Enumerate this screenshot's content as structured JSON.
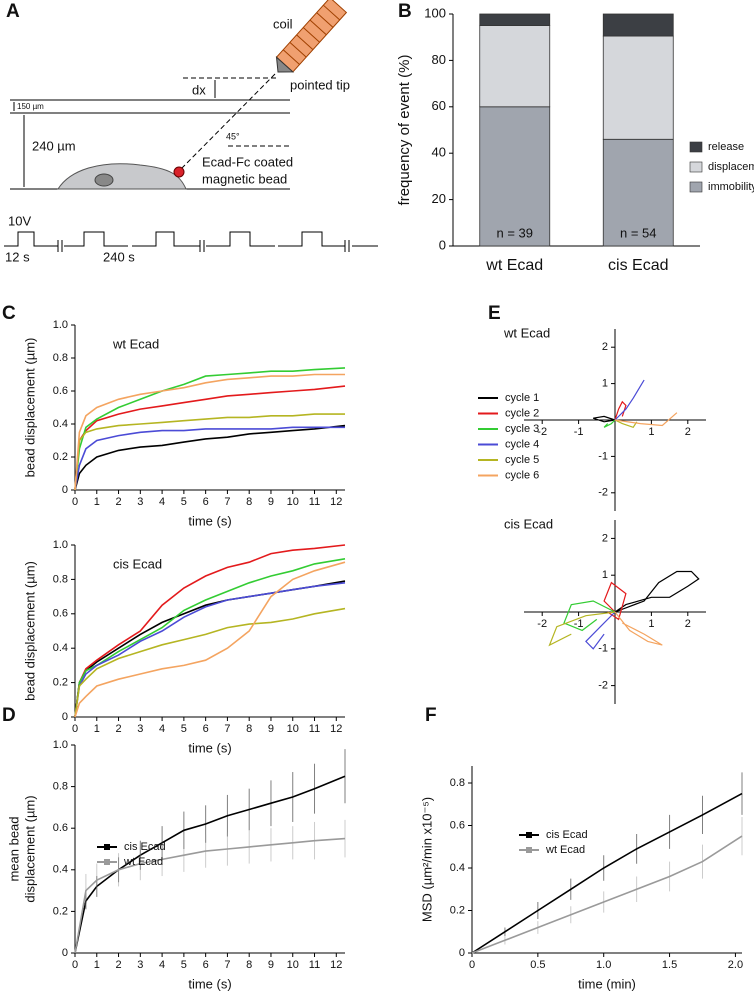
{
  "panel_labels": [
    "A",
    "B",
    "C",
    "D",
    "E",
    "F"
  ],
  "diagram": {
    "coil": "coil",
    "pointed_tip": "pointed tip",
    "dx": "dx",
    "thin_gap": "150 µm",
    "height": "240 µm",
    "angle": "45°",
    "bead_label": [
      "Ecad-Fc coated",
      "magnetic bead"
    ],
    "voltage": "10V",
    "pulse": "12 s",
    "interval": "240 s"
  },
  "chart_data": [
    {
      "type": "bar",
      "stacked": true,
      "ylabel": "frequency of event (%)",
      "categories": [
        "wt Ecad",
        "cis Ecad"
      ],
      "series": [
        {
          "name": "immobility",
          "color": "#a0a5ae",
          "values": [
            60,
            46
          ]
        },
        {
          "name": "displacement",
          "color": "#d5d7db",
          "values": [
            35,
            44.5
          ]
        },
        {
          "name": "release",
          "color": "#3c3f44",
          "values": [
            5,
            9.5
          ]
        }
      ],
      "annotations": [
        "n = 39",
        "n = 54"
      ],
      "ylim": [
        0,
        100
      ],
      "yticks": [
        0,
        20,
        40,
        60,
        80,
        100
      ]
    },
    {
      "type": "line",
      "title": "wt Ecad",
      "ylabel": "bead displacement (µm)",
      "xlabel": "time (s)",
      "x": [
        0,
        0.2,
        0.5,
        1,
        2,
        3,
        4,
        5,
        6,
        7,
        8,
        9,
        10,
        11,
        12.4
      ],
      "series": [
        {
          "name": "cycle 1",
          "color": "#000000",
          "values": [
            0,
            0.1,
            0.15,
            0.2,
            0.24,
            0.26,
            0.27,
            0.29,
            0.31,
            0.32,
            0.34,
            0.35,
            0.36,
            0.37,
            0.39
          ]
        },
        {
          "name": "cycle 2",
          "color": "#e31a1c",
          "values": [
            0,
            0.3,
            0.36,
            0.42,
            0.46,
            0.49,
            0.51,
            0.53,
            0.55,
            0.57,
            0.58,
            0.59,
            0.6,
            0.61,
            0.63
          ]
        },
        {
          "name": "cycle 3",
          "color": "#33cc33",
          "values": [
            0,
            0.25,
            0.38,
            0.43,
            0.5,
            0.55,
            0.6,
            0.64,
            0.69,
            0.7,
            0.71,
            0.72,
            0.72,
            0.73,
            0.74
          ]
        },
        {
          "name": "cycle 4",
          "color": "#4b4bd6",
          "values": [
            0,
            0.15,
            0.25,
            0.3,
            0.33,
            0.35,
            0.36,
            0.36,
            0.37,
            0.37,
            0.37,
            0.37,
            0.38,
            0.38,
            0.38
          ]
        },
        {
          "name": "cycle 5",
          "color": "#b5b522",
          "values": [
            0,
            0.3,
            0.35,
            0.37,
            0.39,
            0.4,
            0.41,
            0.42,
            0.43,
            0.44,
            0.44,
            0.45,
            0.45,
            0.46,
            0.46
          ]
        },
        {
          "name": "cycle 6",
          "color": "#f4a460",
          "values": [
            0,
            0.35,
            0.45,
            0.5,
            0.55,
            0.58,
            0.6,
            0.62,
            0.65,
            0.67,
            0.68,
            0.69,
            0.69,
            0.7,
            0.7
          ]
        }
      ],
      "xlim": [
        0,
        12.4
      ],
      "xticks": [
        0,
        1,
        2,
        3,
        4,
        5,
        6,
        7,
        8,
        9,
        10,
        11,
        12
      ],
      "ylim": [
        0,
        1
      ],
      "yticks": [
        0,
        0.2,
        0.4,
        0.6,
        0.8,
        {
          "value": 1,
          "label": "1.0"
        }
      ]
    },
    {
      "type": "line",
      "title": "cis Ecad",
      "ylabel": "bead displacement (µm)",
      "xlabel": "time (s)",
      "x": [
        0,
        0.2,
        0.5,
        1,
        2,
        3,
        4,
        5,
        6,
        7,
        8,
        9,
        10,
        11,
        12.4
      ],
      "series": [
        {
          "color": "#000000",
          "values": [
            0,
            0.2,
            0.27,
            0.32,
            0.4,
            0.48,
            0.55,
            0.6,
            0.65,
            0.68,
            0.7,
            0.72,
            0.74,
            0.76,
            0.79
          ]
        },
        {
          "color": "#e31a1c",
          "values": [
            0,
            0.2,
            0.28,
            0.33,
            0.42,
            0.5,
            0.65,
            0.75,
            0.82,
            0.87,
            0.9,
            0.95,
            0.97,
            0.98,
            1
          ]
        },
        {
          "color": "#33cc33",
          "values": [
            0,
            0.2,
            0.27,
            0.3,
            0.38,
            0.45,
            0.52,
            0.62,
            0.68,
            0.73,
            0.78,
            0.82,
            0.85,
            0.89,
            0.92
          ]
        },
        {
          "color": "#4b4bd6",
          "values": [
            0,
            0.18,
            0.25,
            0.3,
            0.36,
            0.44,
            0.5,
            0.58,
            0.64,
            0.68,
            0.7,
            0.72,
            0.74,
            0.76,
            0.78
          ]
        },
        {
          "color": "#b5b522",
          "values": [
            0,
            0.18,
            0.22,
            0.28,
            0.34,
            0.38,
            0.42,
            0.45,
            0.48,
            0.52,
            0.54,
            0.55,
            0.57,
            0.6,
            0.63
          ]
        },
        {
          "color": "#f4a460",
          "values": [
            0,
            0.08,
            0.12,
            0.18,
            0.22,
            0.25,
            0.28,
            0.3,
            0.33,
            0.4,
            0.5,
            0.7,
            0.8,
            0.85,
            0.9
          ]
        }
      ],
      "xlim": [
        0,
        12.4
      ],
      "xticks": [
        0,
        1,
        2,
        3,
        4,
        5,
        6,
        7,
        8,
        9,
        10,
        11,
        12
      ],
      "ylim": [
        0,
        1
      ],
      "yticks": [
        0,
        0.2,
        0.4,
        0.6,
        0.8,
        {
          "value": 1,
          "label": "1.0"
        }
      ]
    },
    {
      "type": "line",
      "spines": "zero",
      "title": "wt Ecad",
      "series": [
        {
          "color": "#000000",
          "x": [
            0,
            -0.3,
            -0.6,
            -0.3,
            0
          ],
          "values": [
            0,
            0.1,
            0.05,
            -0.05,
            0
          ]
        },
        {
          "color": "#e31a1c",
          "x": [
            0,
            0.1,
            0.2,
            0.3,
            0.2
          ],
          "values": [
            0,
            0.3,
            0.5,
            0.4,
            0.1
          ]
        },
        {
          "color": "#33cc33",
          "x": [
            0,
            -0.1,
            -0.3,
            -0.2
          ],
          "values": [
            0,
            -0.1,
            -0.2,
            -0.1
          ]
        },
        {
          "color": "#4b4bd6",
          "x": [
            0,
            0.3,
            0.5,
            0.8
          ],
          "values": [
            0,
            0.3,
            0.6,
            1.1
          ]
        },
        {
          "color": "#b5b522",
          "x": [
            0,
            0.2,
            0.5,
            0.6
          ],
          "values": [
            0,
            -0.1,
            -0.2,
            -0.05
          ]
        },
        {
          "color": "#f4a460",
          "x": [
            0,
            0.7,
            1.3,
            1.7
          ],
          "values": [
            0,
            -0.1,
            -0.15,
            0.2
          ]
        }
      ],
      "xlim": [
        -2.5,
        2.5
      ],
      "xticks": [
        -2,
        -1,
        1,
        2
      ],
      "ylim": [
        -2.5,
        2.5
      ],
      "yticks": [
        -2,
        -1,
        1,
        2
      ]
    },
    {
      "type": "line",
      "spines": "zero",
      "title": "cis Ecad",
      "series": [
        {
          "color": "#000000",
          "x": [
            0,
            0.8,
            1.2,
            1.7,
            2.1,
            2.3,
            2,
            1.5,
            1,
            0.3,
            0
          ],
          "values": [
            0,
            0.3,
            0.8,
            1.1,
            1.1,
            0.9,
            0.7,
            0.4,
            0.4,
            0.2,
            0
          ]
        },
        {
          "color": "#e31a1c",
          "x": [
            0,
            -0.3,
            -0.1,
            0.3,
            0.1,
            -0.2
          ],
          "values": [
            0,
            0.3,
            0.8,
            0.5,
            -0.2,
            0
          ]
        },
        {
          "color": "#33cc33",
          "x": [
            0,
            -0.6,
            -1.2,
            -1.4,
            -0.9,
            -0.5
          ],
          "values": [
            0,
            0.3,
            0.2,
            -0.3,
            -0.5,
            -0.2
          ]
        },
        {
          "color": "#4b4bd6",
          "x": [
            0,
            -0.4,
            -0.8,
            -0.6,
            -0.3
          ],
          "values": [
            0,
            -0.4,
            -0.8,
            -1,
            -0.6
          ]
        },
        {
          "color": "#b5b522",
          "x": [
            0,
            -0.8,
            -1.6,
            -1.8,
            -1.2
          ],
          "values": [
            0,
            -0.1,
            -0.4,
            -0.9,
            -0.6
          ]
        },
        {
          "color": "#f4a460",
          "x": [
            0,
            0.4,
            0.9,
            1.3,
            0.8,
            0.2
          ],
          "values": [
            0,
            -0.5,
            -0.8,
            -0.9,
            -0.6,
            -0.3
          ]
        }
      ],
      "xlim": [
        -2.5,
        2.5
      ],
      "xticks": [
        -2,
        -1,
        1,
        2
      ],
      "ylim": [
        -2.5,
        2.5
      ],
      "yticks": [
        -2,
        -1,
        1,
        2
      ]
    },
    {
      "type": "line",
      "ylabel": [
        "mean bead",
        "displacement (µm)"
      ],
      "xlabel": "time (s)",
      "x": [
        0,
        0.5,
        1,
        2,
        3,
        4,
        5,
        6,
        7,
        8,
        9,
        10,
        11,
        12.4
      ],
      "series": [
        {
          "name": "cis Ecad",
          "color": "#000000",
          "values": [
            0,
            0.25,
            0.32,
            0.4,
            0.47,
            0.53,
            0.59,
            0.62,
            0.66,
            0.69,
            0.72,
            0.75,
            0.79,
            0.85
          ],
          "errors": [
            0,
            0.04,
            0.05,
            0.06,
            0.07,
            0.08,
            0.09,
            0.09,
            0.1,
            0.1,
            0.11,
            0.12,
            0.12,
            0.13
          ]
        },
        {
          "name": "wt Ecad",
          "color": "#9a9a9a",
          "values": [
            0,
            0.3,
            0.35,
            0.4,
            0.43,
            0.45,
            0.47,
            0.49,
            0.5,
            0.51,
            0.52,
            0.53,
            0.54,
            0.55
          ],
          "errors": [
            0,
            0.08,
            0.08,
            0.08,
            0.08,
            0.08,
            0.08,
            0.08,
            0.08,
            0.08,
            0.08,
            0.08,
            0.09,
            0.09
          ]
        }
      ],
      "xlim": [
        0,
        12.4
      ],
      "xticks": [
        0,
        1,
        2,
        3,
        4,
        5,
        6,
        7,
        8,
        9,
        10,
        11,
        12
      ],
      "ylim": [
        0,
        1
      ],
      "yticks": [
        0,
        0.2,
        0.4,
        0.6,
        0.8,
        {
          "value": 1,
          "label": "1.0"
        }
      ]
    },
    {
      "type": "line",
      "ylabel": "MSD (µm²/min x10⁻⁵)",
      "xlabel": "time (min)",
      "x": [
        0,
        0.25,
        0.5,
        0.75,
        1,
        1.25,
        1.5,
        1.75,
        2.05
      ],
      "series": [
        {
          "name": "cis Ecad",
          "color": "#000000",
          "values": [
            0,
            0.1,
            0.2,
            0.3,
            0.4,
            0.49,
            0.57,
            0.65,
            0.75
          ],
          "errors": [
            0,
            0.02,
            0.04,
            0.05,
            0.06,
            0.07,
            0.08,
            0.09,
            0.1
          ]
        },
        {
          "name": "wt Ecad",
          "color": "#9a9a9a",
          "values": [
            0,
            0.06,
            0.12,
            0.18,
            0.24,
            0.3,
            0.36,
            0.43,
            0.55
          ],
          "errors": [
            0,
            0.02,
            0.03,
            0.04,
            0.05,
            0.06,
            0.07,
            0.08,
            0.09
          ]
        }
      ],
      "xlim": [
        0,
        2.05
      ],
      "xticks": [
        0,
        0.5,
        {
          "value": 1,
          "label": "1.0"
        },
        1.5,
        {
          "value": 2,
          "label": "2.0"
        }
      ],
      "ylim": [
        0,
        0.88
      ],
      "yticks": [
        0,
        0.2,
        0.4,
        0.6,
        0.8
      ]
    }
  ]
}
